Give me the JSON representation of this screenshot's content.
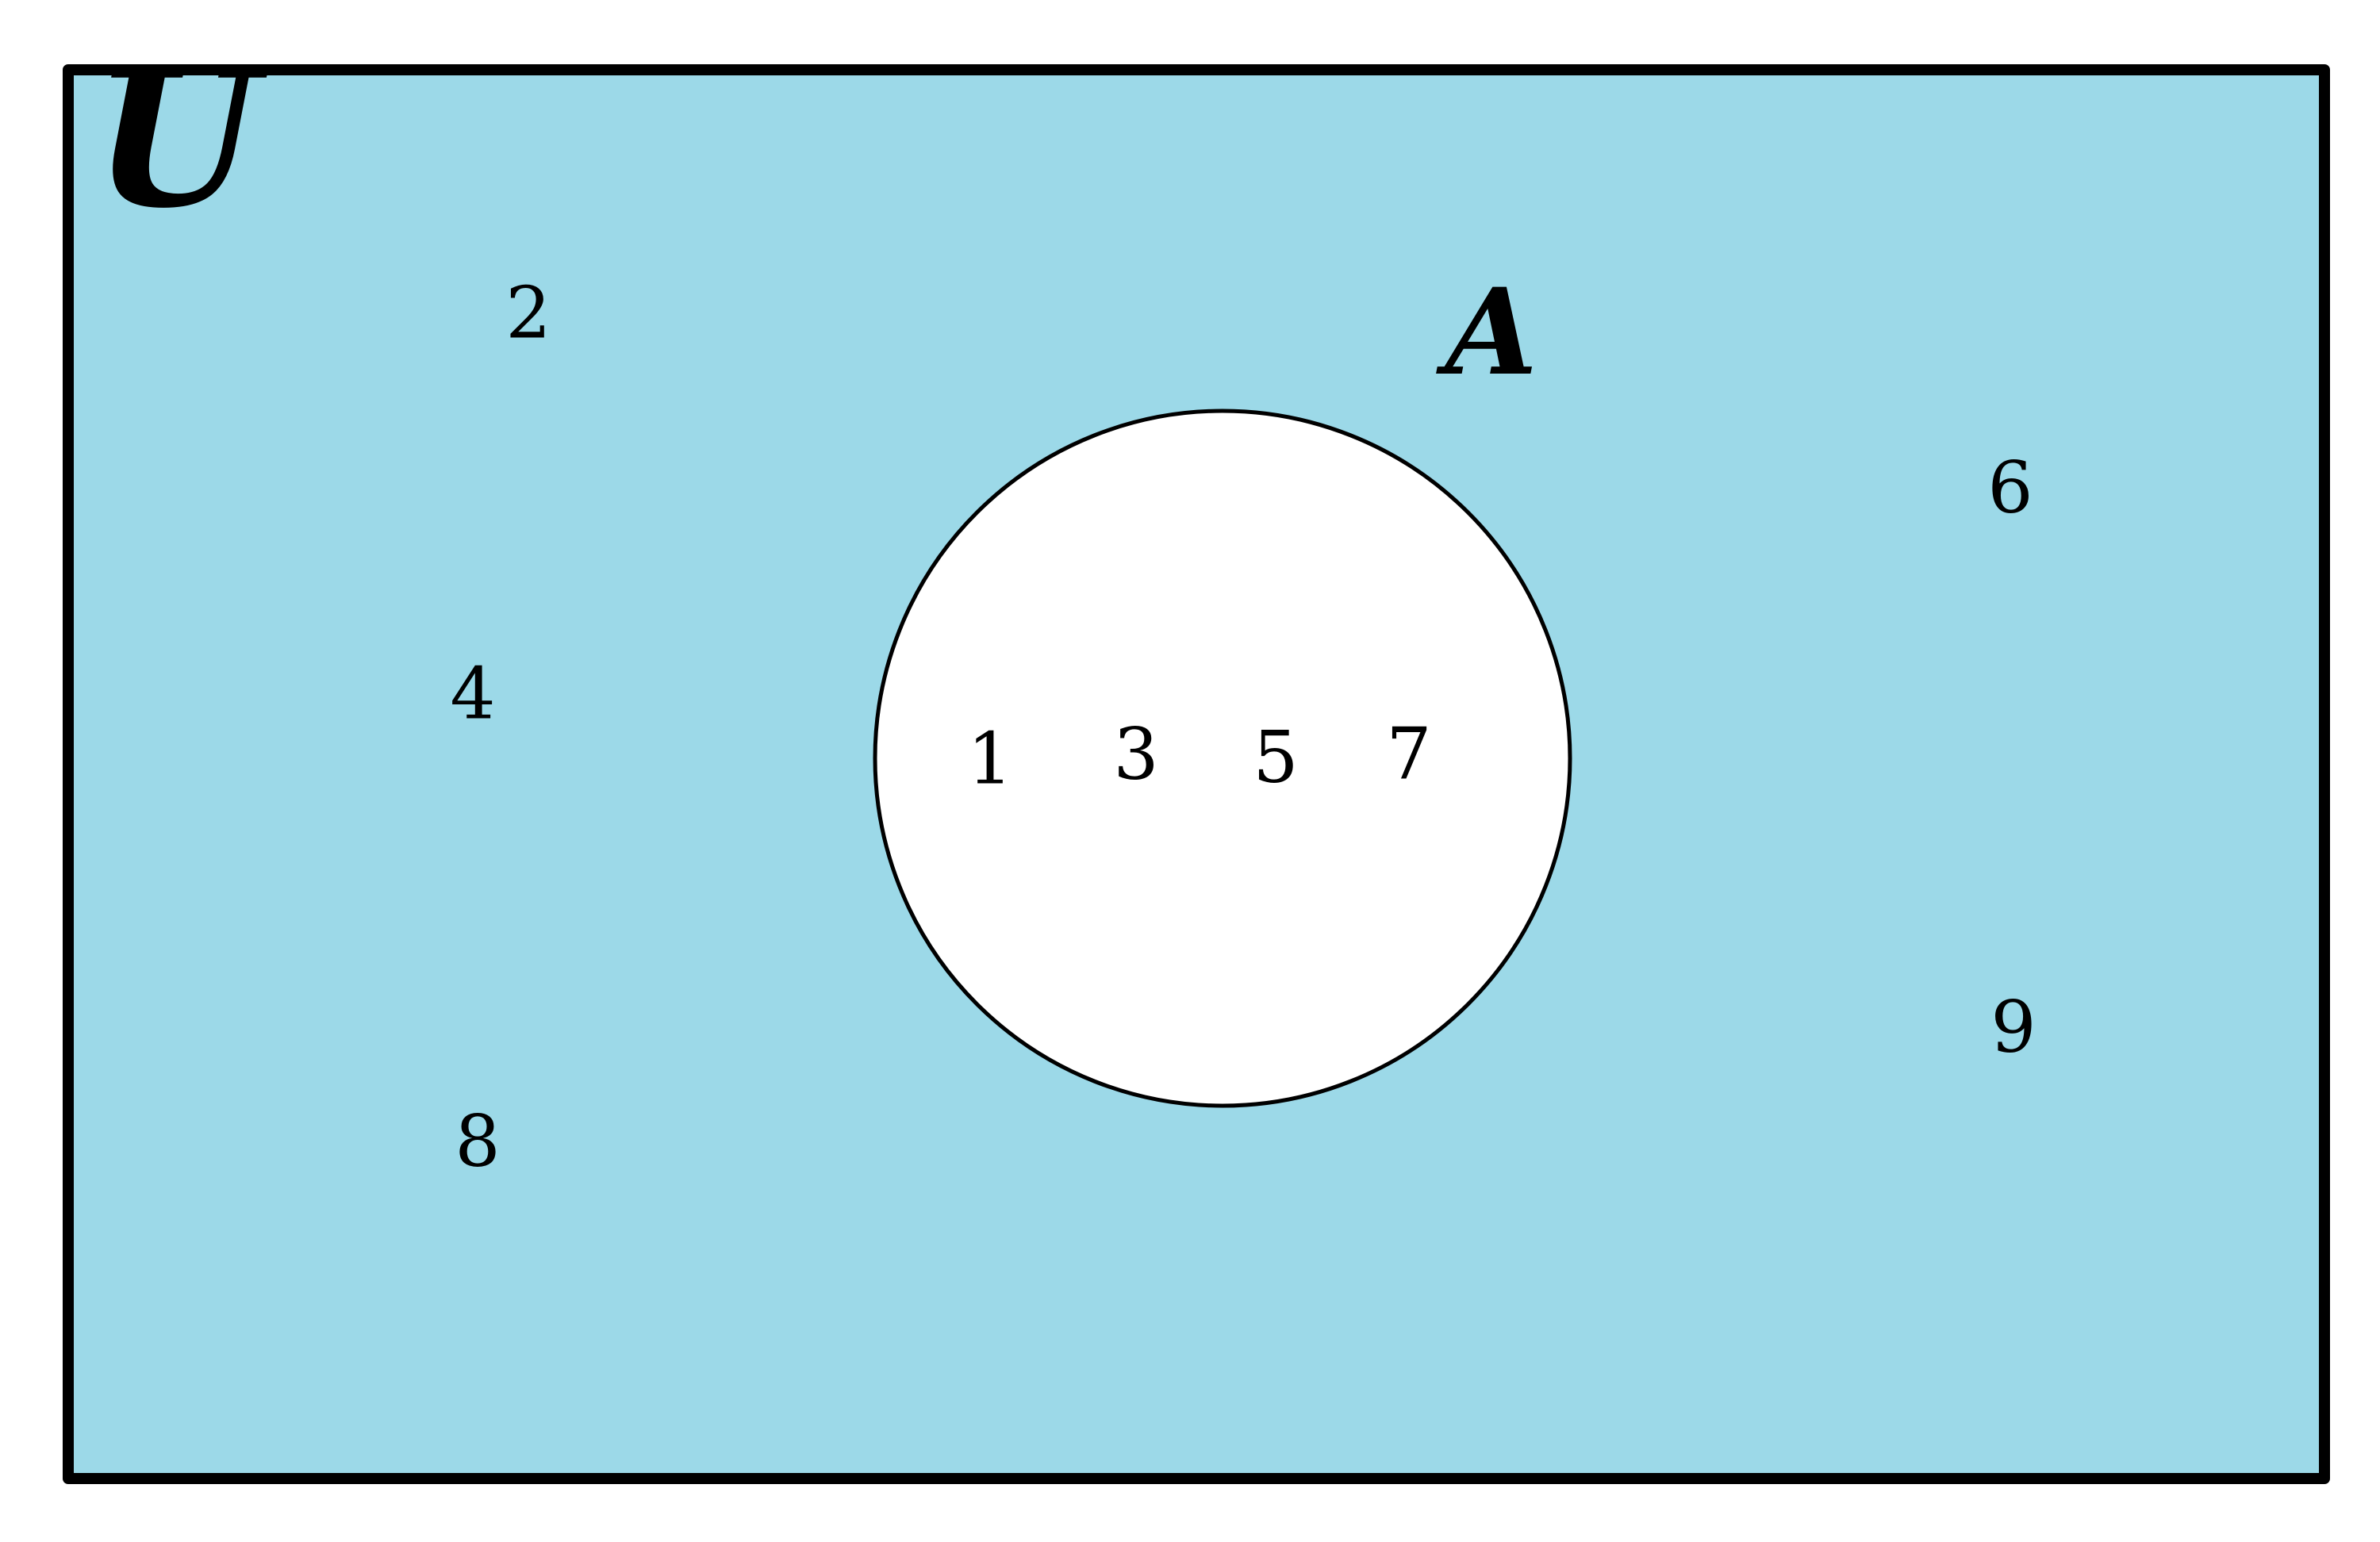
{
  "diagram": {
    "universal_set_label": "U",
    "set_label": "A",
    "inside_set": [
      "1",
      "3",
      "5",
      "7"
    ],
    "outside_set": [
      "2",
      "4",
      "8",
      "6",
      "9"
    ],
    "colors": {
      "complement_fill": "#9cd9e8",
      "set_fill": "#ffffff",
      "stroke": "#000000",
      "highlight_number": "#3a0a0a"
    }
  }
}
